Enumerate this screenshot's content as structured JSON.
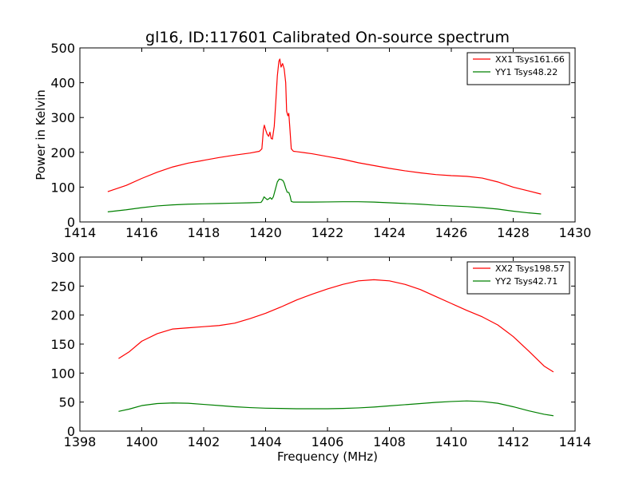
{
  "title": "gl16, ID:117601 Calibrated On-source spectrum",
  "chart_data": [
    {
      "type": "line",
      "ylabel": "Power in Kelvin",
      "xlabel": "",
      "xlim": [
        1414,
        1430
      ],
      "ylim": [
        0,
        500
      ],
      "xticks": [
        1414,
        1416,
        1418,
        1420,
        1422,
        1424,
        1426,
        1428,
        1430
      ],
      "yticks": [
        0,
        100,
        200,
        300,
        400,
        500
      ],
      "legend_position": "top-right",
      "series": [
        {
          "name": "XX1 Tsys161.66",
          "color": "#ff0000",
          "points": [
            [
              1414.9,
              87
            ],
            [
              1415.5,
              105
            ],
            [
              1416.0,
              125
            ],
            [
              1416.5,
              143
            ],
            [
              1417.0,
              158
            ],
            [
              1417.5,
              169
            ],
            [
              1418.0,
              177
            ],
            [
              1418.5,
              185
            ],
            [
              1419.0,
              192
            ],
            [
              1419.5,
              198
            ],
            [
              1419.8,
              203
            ],
            [
              1419.88,
              210
            ],
            [
              1419.93,
              265
            ],
            [
              1419.96,
              278
            ],
            [
              1420.0,
              265
            ],
            [
              1420.05,
              252
            ],
            [
              1420.1,
              246
            ],
            [
              1420.14,
              258
            ],
            [
              1420.18,
              240
            ],
            [
              1420.22,
              238
            ],
            [
              1420.28,
              275
            ],
            [
              1420.33,
              345
            ],
            [
              1420.38,
              420
            ],
            [
              1420.43,
              462
            ],
            [
              1420.46,
              468
            ],
            [
              1420.5,
              445
            ],
            [
              1420.55,
              455
            ],
            [
              1420.6,
              440
            ],
            [
              1420.65,
              400
            ],
            [
              1420.68,
              318
            ],
            [
              1420.72,
              305
            ],
            [
              1420.75,
              312
            ],
            [
              1420.78,
              275
            ],
            [
              1420.83,
              210
            ],
            [
              1420.9,
              203
            ],
            [
              1421.0,
              202
            ],
            [
              1421.5,
              196
            ],
            [
              1422.0,
              188
            ],
            [
              1422.5,
              180
            ],
            [
              1423.0,
              170
            ],
            [
              1423.5,
              162
            ],
            [
              1424.0,
              154
            ],
            [
              1424.5,
              147
            ],
            [
              1425.0,
              141
            ],
            [
              1425.5,
              136
            ],
            [
              1426.0,
              133
            ],
            [
              1426.5,
              131
            ],
            [
              1427.0,
              126
            ],
            [
              1427.5,
              115
            ],
            [
              1428.0,
              100
            ],
            [
              1428.5,
              89
            ],
            [
              1428.9,
              80
            ]
          ]
        },
        {
          "name": "YY1 Tsys48.22",
          "color": "#008000",
          "points": [
            [
              1414.9,
              29
            ],
            [
              1415.5,
              35
            ],
            [
              1416.0,
              41
            ],
            [
              1416.5,
              46
            ],
            [
              1417.0,
              49
            ],
            [
              1417.5,
              51
            ],
            [
              1418.0,
              52
            ],
            [
              1418.5,
              53
            ],
            [
              1419.0,
              54
            ],
            [
              1419.5,
              55
            ],
            [
              1419.85,
              56
            ],
            [
              1419.9,
              62
            ],
            [
              1419.95,
              72
            ],
            [
              1420.0,
              68
            ],
            [
              1420.05,
              64
            ],
            [
              1420.1,
              66
            ],
            [
              1420.15,
              70
            ],
            [
              1420.2,
              65
            ],
            [
              1420.25,
              72
            ],
            [
              1420.32,
              95
            ],
            [
              1420.38,
              115
            ],
            [
              1420.44,
              123
            ],
            [
              1420.5,
              122
            ],
            [
              1420.56,
              119
            ],
            [
              1420.6,
              112
            ],
            [
              1420.65,
              97
            ],
            [
              1420.7,
              85
            ],
            [
              1420.75,
              85
            ],
            [
              1420.79,
              75
            ],
            [
              1420.83,
              59
            ],
            [
              1420.9,
              57
            ],
            [
              1421.0,
              57
            ],
            [
              1421.5,
              57
            ],
            [
              1422.0,
              57.5
            ],
            [
              1422.5,
              58
            ],
            [
              1423.0,
              58
            ],
            [
              1423.5,
              57
            ],
            [
              1424.0,
              55
            ],
            [
              1424.5,
              53
            ],
            [
              1425.0,
              51
            ],
            [
              1425.5,
              48
            ],
            [
              1426.0,
              46
            ],
            [
              1426.5,
              44
            ],
            [
              1427.0,
              41
            ],
            [
              1427.5,
              37
            ],
            [
              1428.0,
              31
            ],
            [
              1428.5,
              26
            ],
            [
              1428.9,
              23
            ]
          ]
        }
      ]
    },
    {
      "type": "line",
      "ylabel": "",
      "xlabel": "Frequency (MHz)",
      "xlim": [
        1398,
        1414
      ],
      "ylim": [
        0,
        300
      ],
      "xticks": [
        1398,
        1400,
        1402,
        1404,
        1406,
        1408,
        1410,
        1412,
        1414
      ],
      "yticks": [
        0,
        50,
        100,
        150,
        200,
        250,
        300
      ],
      "legend_position": "top-right",
      "series": [
        {
          "name": "XX2 Tsys198.57",
          "color": "#ff0000",
          "points": [
            [
              1399.25,
              125
            ],
            [
              1399.6,
              137
            ],
            [
              1400.0,
              155
            ],
            [
              1400.5,
              168
            ],
            [
              1401.0,
              176
            ],
            [
              1401.5,
              178
            ],
            [
              1402.0,
              180
            ],
            [
              1402.5,
              182
            ],
            [
              1403.0,
              186
            ],
            [
              1403.5,
              194
            ],
            [
              1404.0,
              203
            ],
            [
              1404.5,
              214
            ],
            [
              1405.0,
              226
            ],
            [
              1405.5,
              236
            ],
            [
              1406.0,
              245
            ],
            [
              1406.5,
              253
            ],
            [
              1407.0,
              259
            ],
            [
              1407.5,
              261
            ],
            [
              1408.0,
              259
            ],
            [
              1408.5,
              253
            ],
            [
              1409.0,
              244
            ],
            [
              1409.5,
              232
            ],
            [
              1410.0,
              220
            ],
            [
              1410.5,
              208
            ],
            [
              1411.0,
              197
            ],
            [
              1411.5,
              183
            ],
            [
              1412.0,
              163
            ],
            [
              1412.5,
              138
            ],
            [
              1413.0,
              112
            ],
            [
              1413.3,
              102
            ]
          ]
        },
        {
          "name": "YY2 Tsys42.71",
          "color": "#008000",
          "points": [
            [
              1399.25,
              34
            ],
            [
              1399.6,
              38
            ],
            [
              1400.0,
              44
            ],
            [
              1400.5,
              47.5
            ],
            [
              1401.0,
              48.5
            ],
            [
              1401.5,
              48
            ],
            [
              1402.0,
              46
            ],
            [
              1402.5,
              44
            ],
            [
              1403.0,
              42
            ],
            [
              1403.5,
              40.5
            ],
            [
              1404.0,
              39.5
            ],
            [
              1404.5,
              39
            ],
            [
              1405.0,
              38.5
            ],
            [
              1405.5,
              38.5
            ],
            [
              1406.0,
              38.5
            ],
            [
              1406.5,
              39
            ],
            [
              1407.0,
              40
            ],
            [
              1407.5,
              41.5
            ],
            [
              1408.0,
              43.5
            ],
            [
              1408.5,
              45.5
            ],
            [
              1409.0,
              47.5
            ],
            [
              1409.5,
              49.5
            ],
            [
              1410.0,
              51
            ],
            [
              1410.5,
              52
            ],
            [
              1411.0,
              51
            ],
            [
              1411.5,
              48
            ],
            [
              1412.0,
              42
            ],
            [
              1412.5,
              35
            ],
            [
              1413.0,
              29
            ],
            [
              1413.3,
              26.5
            ]
          ]
        }
      ]
    }
  ]
}
